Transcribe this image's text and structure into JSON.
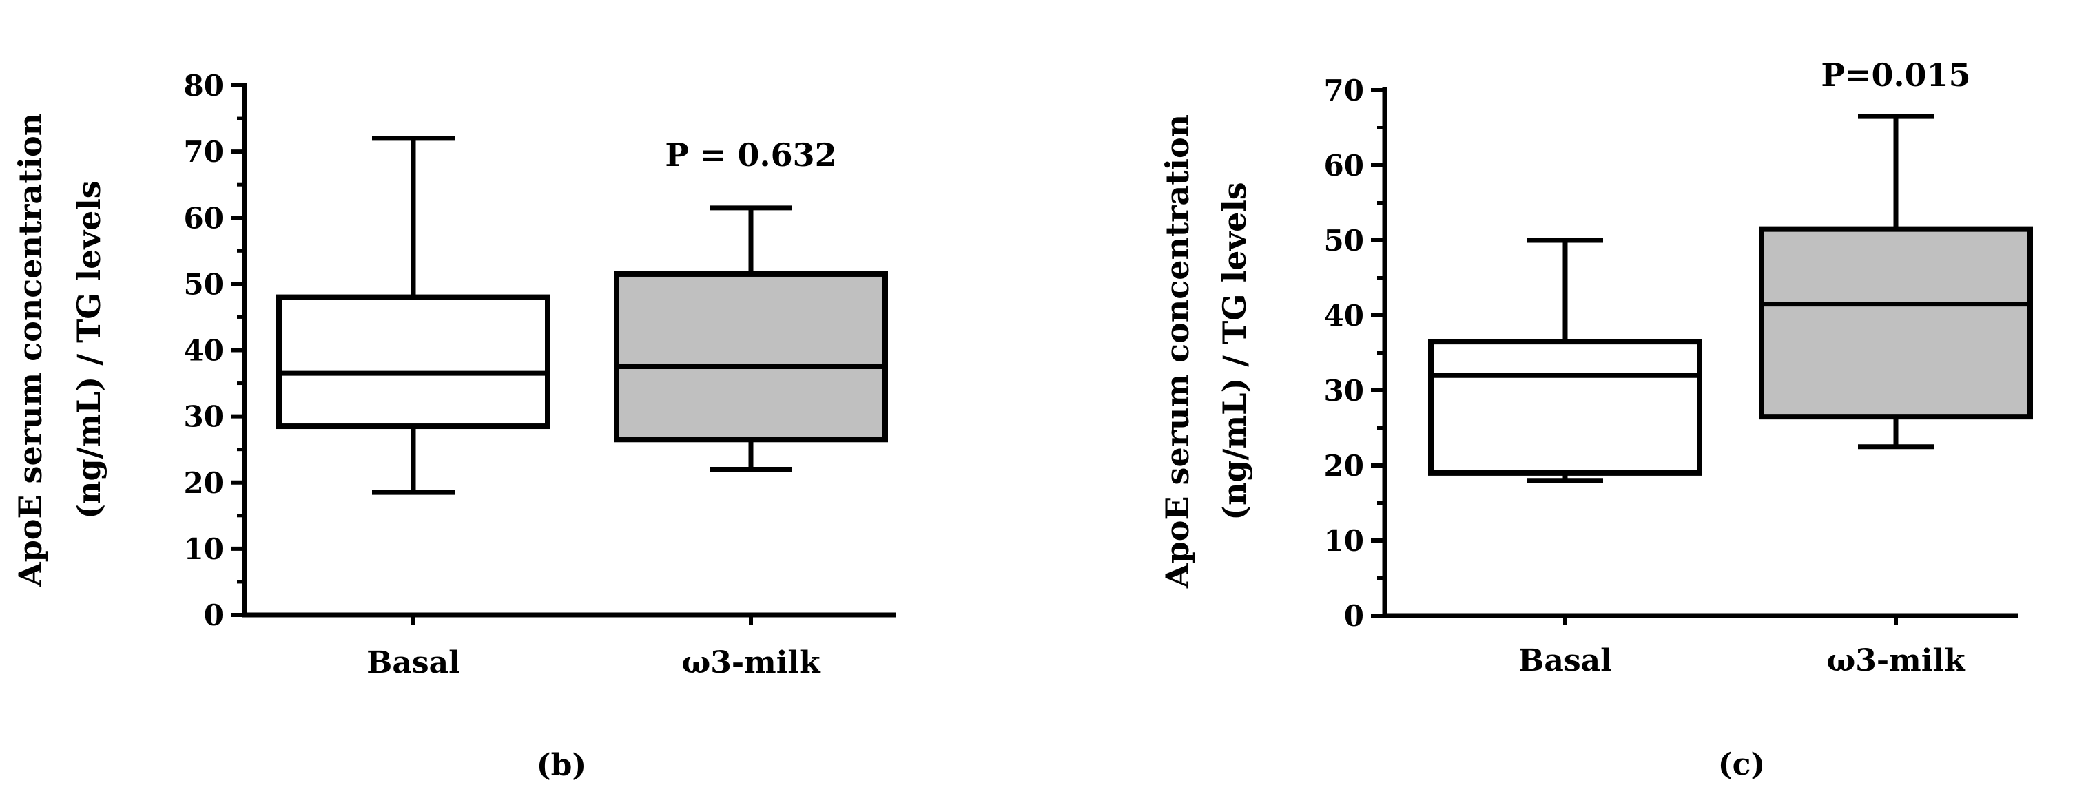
{
  "chart_data": [
    {
      "type": "box",
      "panel_label": "(b)",
      "ylabel_lines": [
        "ApoE serum concentration",
        "(ng/mL) / TG levels"
      ],
      "categories": [
        "Basal",
        "ω3-milk"
      ],
      "ylim": [
        0,
        80
      ],
      "yticks": [
        0,
        10,
        20,
        30,
        40,
        50,
        60,
        70,
        80
      ],
      "boxes": [
        {
          "category": "Basal",
          "min": 18.5,
          "q1": 28.5,
          "median": 36.5,
          "q3": 48,
          "max": 72,
          "fill": "#ffffff"
        },
        {
          "category": "ω3-milk",
          "min": 22,
          "q1": 26.5,
          "median": 37.5,
          "q3": 51.5,
          "max": 61.5,
          "fill": "#c0c0c0"
        }
      ],
      "annotation": {
        "text": "P = 0.632",
        "category": "ω3-milk",
        "y": 69.5
      }
    },
    {
      "type": "box",
      "panel_label": "(c)",
      "ylabel_lines": [
        "ApoE serum concentration",
        "(ng/mL) / TG levels"
      ],
      "categories": [
        "Basal",
        "ω3-milk"
      ],
      "ylim": [
        0,
        70
      ],
      "yticks": [
        0,
        10,
        20,
        30,
        40,
        50,
        60,
        70
      ],
      "boxes": [
        {
          "category": "Basal",
          "min": 18,
          "q1": 19,
          "median": 32,
          "q3": 36.5,
          "max": 50,
          "fill": "#ffffff"
        },
        {
          "category": "ω3-milk",
          "min": 22.5,
          "q1": 26.5,
          "median": 41.5,
          "q3": 51.5,
          "max": 66.5,
          "fill": "#c0c0c0"
        }
      ],
      "annotation": {
        "text": "P=0.015",
        "category": "ω3-milk",
        "y": 72
      }
    }
  ]
}
